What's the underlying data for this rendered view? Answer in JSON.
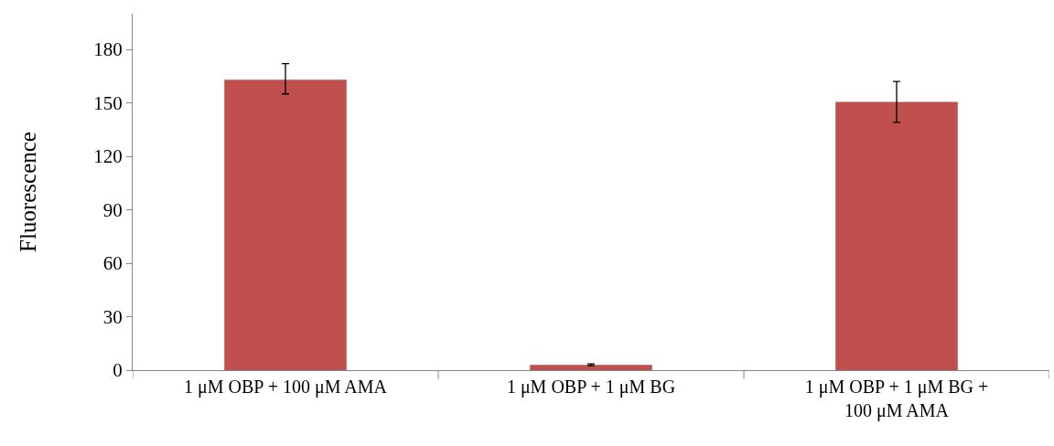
{
  "chart_data": {
    "type": "bar",
    "ylabel": "Fluorescence",
    "categories": [
      "1 μM OBP + 100 μM AMA",
      "1 μM OBP + 1 μM BG",
      "1 μM OBP + 1 μM BG + 100 μM AMA"
    ],
    "values": [
      163,
      3,
      150.5
    ],
    "color": "#c0504d",
    "errors": [
      [
        155,
        172
      ],
      [
        2.5,
        3.5
      ],
      [
        139,
        162
      ]
    ],
    "ylim": [
      0,
      200
    ],
    "yticks": [
      0,
      30,
      60,
      90,
      120,
      150,
      180
    ]
  }
}
